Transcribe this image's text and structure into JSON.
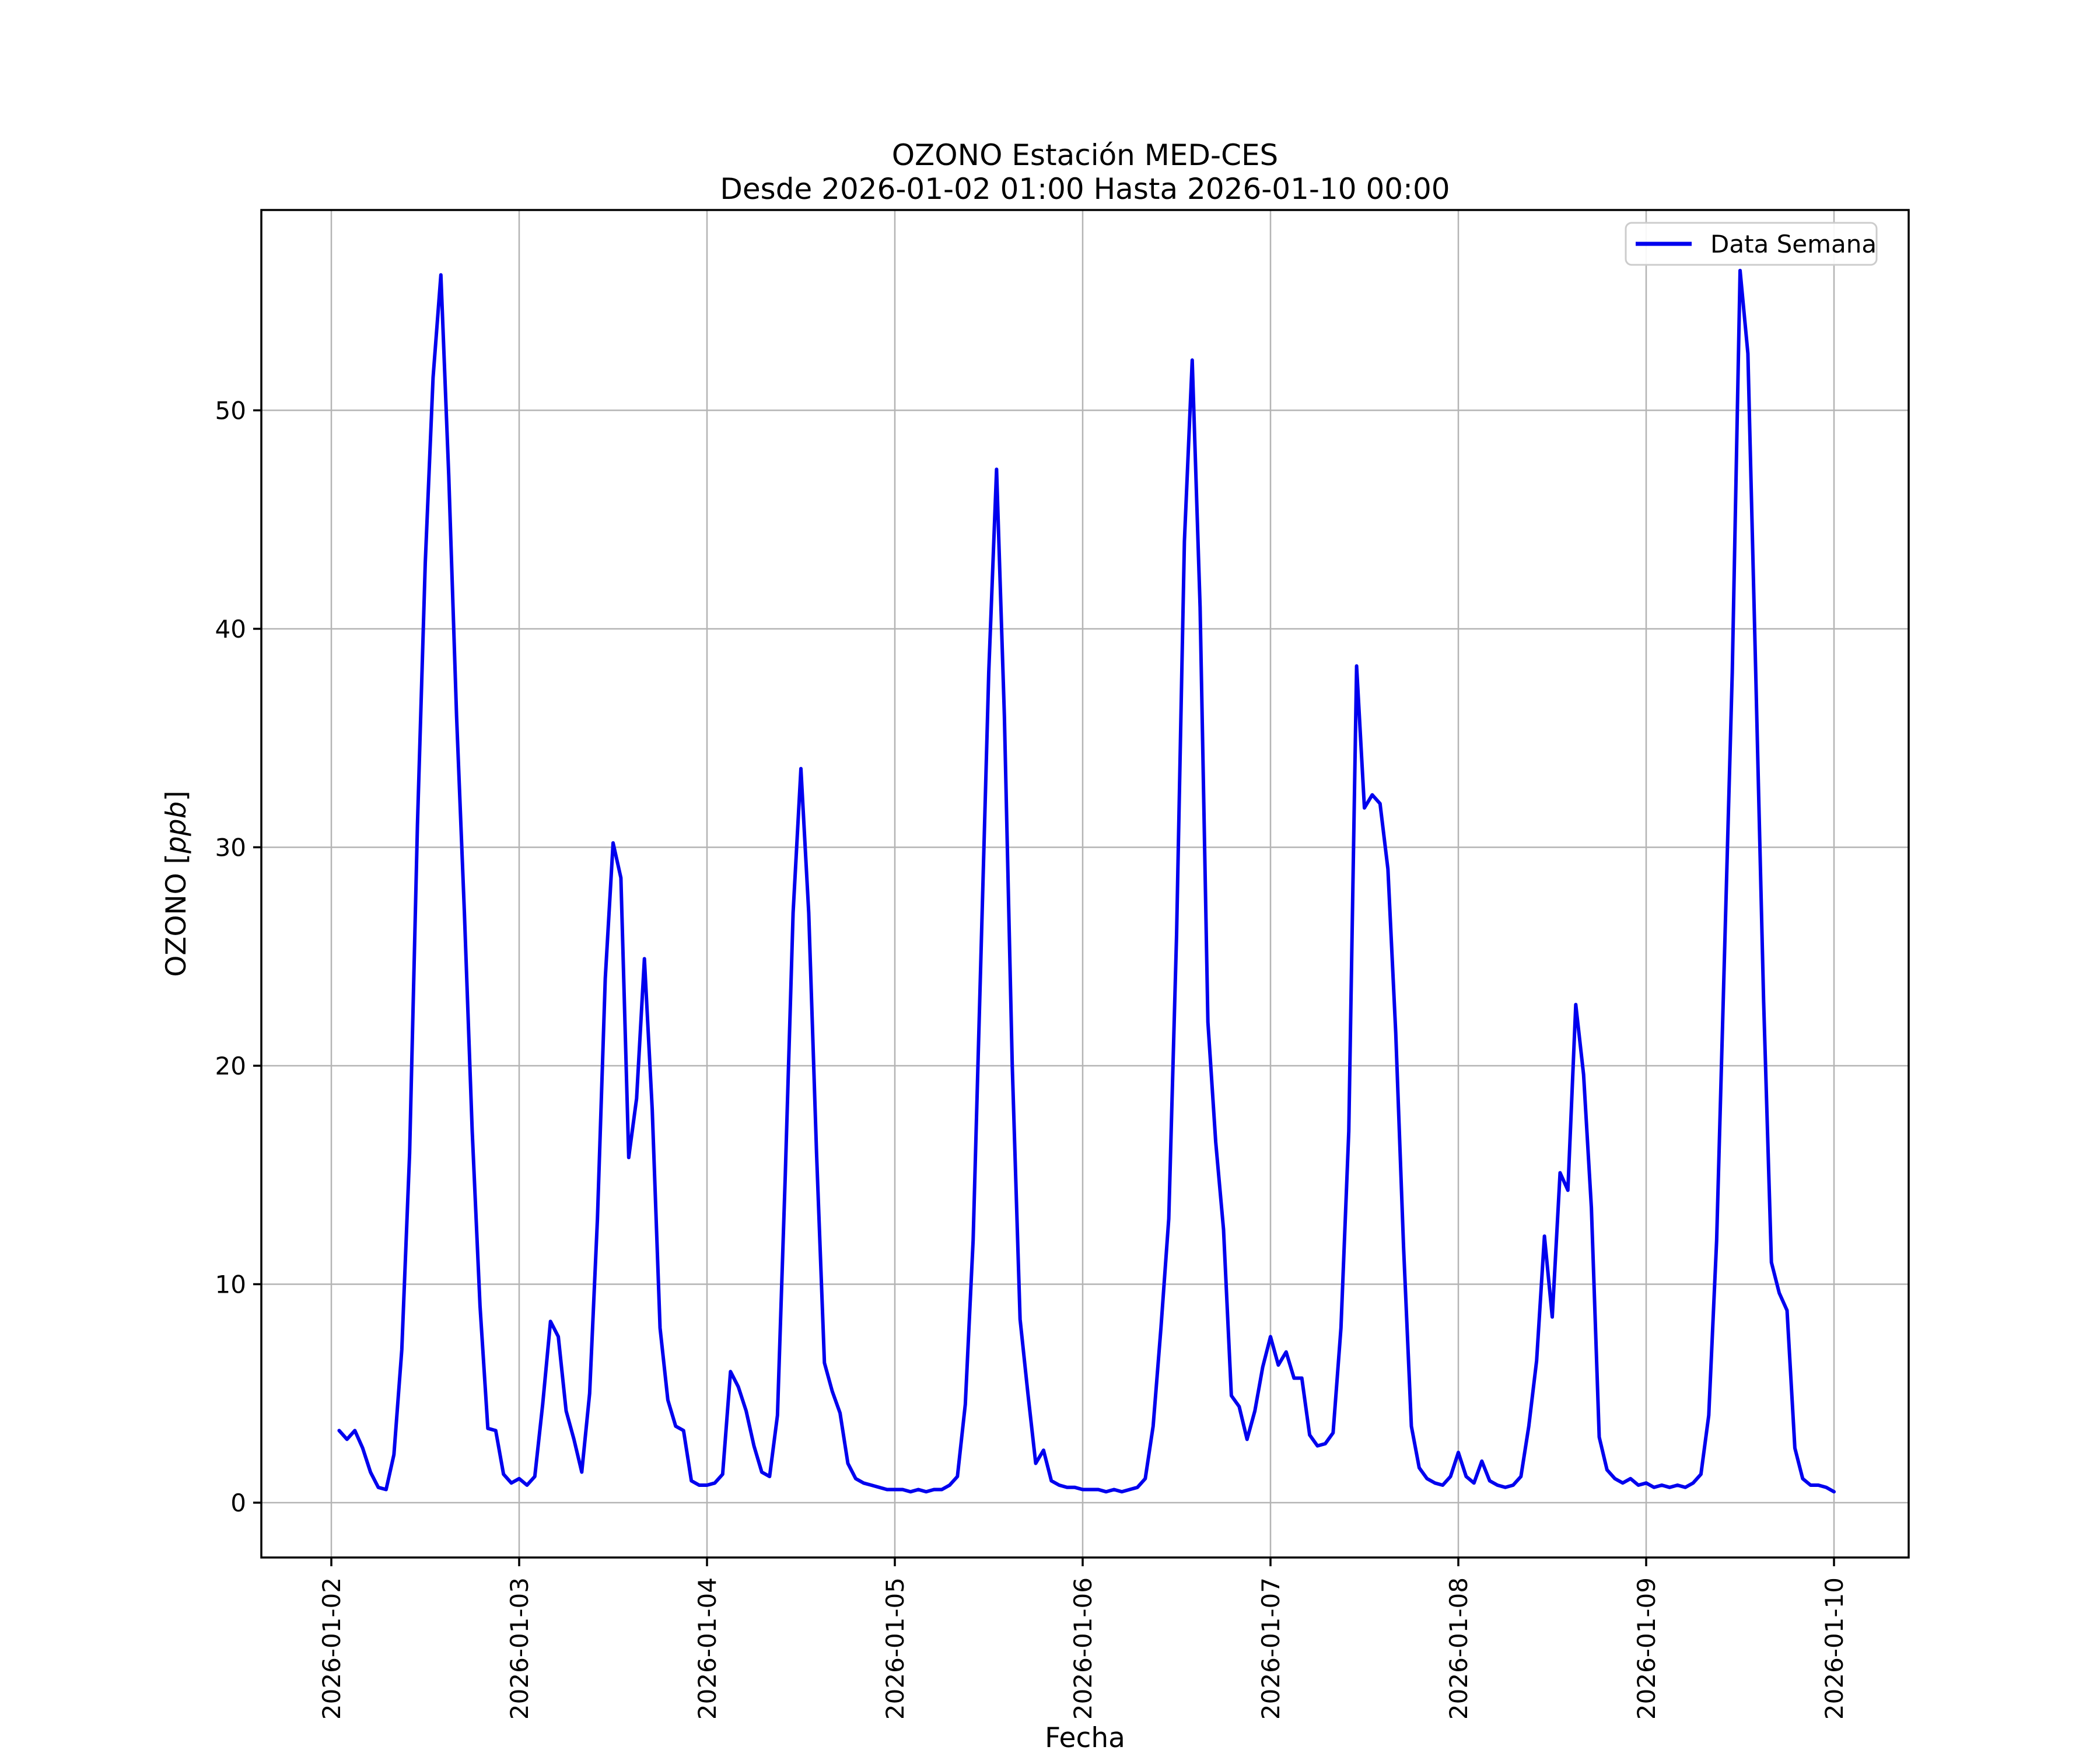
{
  "figure": {
    "title_line1": "OZONO Estación MED-CES",
    "title_line2": "Desde 2026-01-02 01:00 Hasta 2026-01-10 00:00",
    "xlabel": "Fecha",
    "ylabel_prefix": "OZONO [",
    "ylabel_italic": "ppb",
    "ylabel_suffix": "]",
    "legend_label": "Data Semana"
  },
  "chart_data": {
    "type": "line",
    "title": "OZONO Estación MED-CES",
    "subtitle": "Desde 2026-01-02 01:00 Hasta 2026-01-10 00:00",
    "xlabel": "Fecha",
    "ylabel": "OZONO [ppb]",
    "legend_entries": [
      "Data Semana"
    ],
    "legend_position": "upper right",
    "grid": true,
    "line_color": "#0000EE",
    "grid_color": "#B4B4B4",
    "spine_color": "#000000",
    "legend_border_color": "#CCCCCC",
    "background_color": "#FFFFFF",
    "y_ticks": [
      0,
      10,
      20,
      30,
      40,
      50
    ],
    "ylim": [
      -2.51,
      59.17
    ],
    "x_tick_labels": [
      "2026-01-02",
      "2026-01-03",
      "2026-01-04",
      "2026-01-05",
      "2026-01-06",
      "2026-01-07",
      "2026-01-08",
      "2026-01-09",
      "2026-01-10"
    ],
    "x_tick_hours": [
      0,
      24,
      48,
      72,
      96,
      120,
      144,
      168,
      192
    ],
    "xlim_hours": [
      -8.94,
      201.5
    ],
    "series_start": "2026-01-02 01:00",
    "series_step_hours": 1,
    "series_first_hour_offset": 1,
    "values": [
      3.3,
      2.9,
      3.3,
      2.5,
      1.4,
      0.7,
      0.6,
      2.2,
      7.0,
      16.0,
      31.0,
      43.0,
      51.5,
      56.2,
      47.0,
      36.0,
      27.0,
      17.0,
      9.0,
      3.4,
      3.3,
      1.3,
      0.9,
      1.1,
      0.8,
      1.2,
      4.5,
      8.3,
      7.6,
      4.2,
      2.9,
      1.4,
      5.0,
      13.0,
      24.0,
      30.2,
      28.6,
      15.8,
      18.5,
      24.9,
      18.0,
      8.0,
      4.7,
      3.5,
      3.3,
      1.0,
      0.8,
      0.8,
      0.9,
      1.3,
      6.0,
      5.3,
      4.2,
      2.6,
      1.4,
      1.2,
      4.0,
      15.0,
      27.0,
      33.6,
      27.0,
      16.0,
      6.4,
      5.1,
      4.1,
      1.8,
      1.1,
      0.9,
      0.8,
      0.7,
      0.6,
      0.6,
      0.6,
      0.5,
      0.6,
      0.5,
      0.6,
      0.6,
      0.8,
      1.2,
      4.5,
      12.0,
      25.0,
      38.0,
      47.3,
      36.0,
      20.0,
      8.4,
      5.0,
      1.8,
      2.4,
      1.0,
      0.8,
      0.7,
      0.7,
      0.6,
      0.6,
      0.6,
      0.5,
      0.6,
      0.5,
      0.6,
      0.7,
      1.1,
      3.5,
      8.0,
      13.0,
      26.0,
      44.0,
      52.3,
      41.0,
      22.0,
      16.5,
      12.5,
      4.9,
      4.4,
      2.9,
      4.2,
      6.2,
      7.6,
      6.3,
      6.9,
      5.7,
      5.7,
      3.1,
      2.6,
      2.7,
      3.2,
      8.0,
      17.0,
      38.3,
      31.8,
      32.4,
      32.0,
      29.0,
      21.5,
      11.7,
      3.5,
      1.6,
      1.1,
      0.9,
      0.8,
      1.2,
      2.3,
      1.2,
      0.9,
      1.9,
      1.0,
      0.8,
      0.7,
      0.8,
      1.2,
      3.5,
      6.5,
      12.2,
      8.5,
      15.1,
      14.3,
      22.8,
      19.6,
      13.5,
      3.0,
      1.5,
      1.1,
      0.9,
      1.1,
      0.8,
      0.9,
      0.7,
      0.8,
      0.7,
      0.8,
      0.7,
      0.9,
      1.3,
      4.0,
      12.0,
      25.0,
      38.0,
      56.4,
      52.6,
      38.0,
      23.0,
      11.0,
      9.6,
      8.8,
      2.5,
      1.1,
      0.8,
      0.8,
      0.7,
      0.5
    ]
  }
}
